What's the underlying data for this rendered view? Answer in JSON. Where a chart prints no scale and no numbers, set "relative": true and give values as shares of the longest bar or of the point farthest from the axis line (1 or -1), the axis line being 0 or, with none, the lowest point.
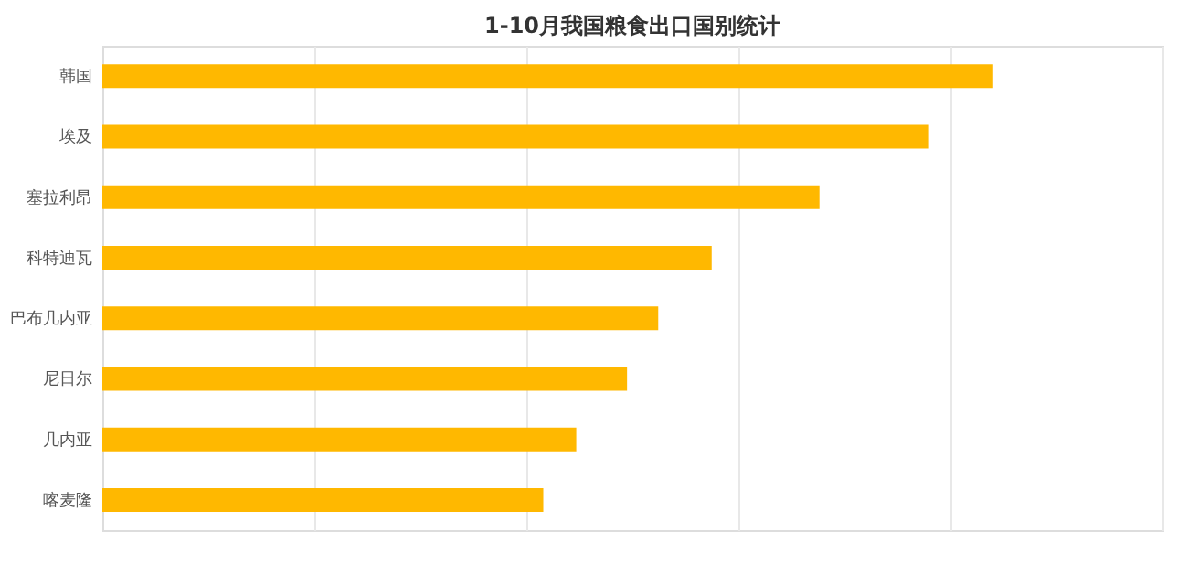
{
  "chart_data": {
    "type": "bar",
    "orientation": "horizontal",
    "relative": true,
    "title": "1-10月我国粮食出口国别统计",
    "categories": [
      "韩国",
      "埃及",
      "塞拉利昂",
      "科特迪瓦",
      "巴布几内亚",
      "尼日尔",
      "几内亚",
      "喀麦隆"
    ],
    "values": [
      1,
      0.928,
      0.805,
      0.684,
      0.624,
      0.589,
      0.532,
      0.495
    ],
    "color": "#ffb800",
    "grid": "x"
  }
}
